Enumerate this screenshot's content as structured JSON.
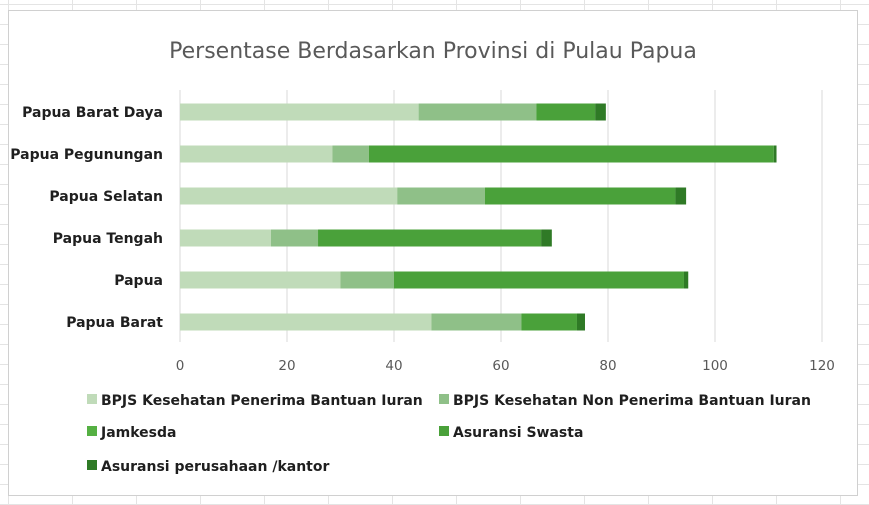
{
  "chart_data": {
    "type": "bar",
    "orientation": "horizontal",
    "stacked": true,
    "title": "Persentase Berdasarkan Provinsi di Pulau Papua",
    "categories": [
      "Papua Barat Daya",
      "Papua Pegunungan",
      "Papua Selatan",
      "Papua Tengah",
      "Papua",
      "Papua Barat"
    ],
    "series": [
      {
        "name": "BPJS Kesehatan Penerima Bantuan Iuran",
        "color": "#c0dbb9",
        "values": [
          44.6,
          28.5,
          40.6,
          17.0,
          30.0,
          47.0
        ]
      },
      {
        "name": "BPJS Kesehatan Non Penerima Bantuan Iuran",
        "color": "#8fc088",
        "values": [
          22.0,
          6.8,
          16.4,
          8.8,
          10.0,
          16.8
        ]
      },
      {
        "name": "Jamkesda",
        "color": "#55b043",
        "values": [
          0,
          0,
          0,
          0,
          0,
          0
        ]
      },
      {
        "name": "Asuransi Swasta",
        "color": "#4aa13a",
        "values": [
          11.0,
          75.7,
          35.6,
          41.7,
          54.2,
          10.4
        ]
      },
      {
        "name": "Asuransi perusahaan /kantor",
        "color": "#2f7a26",
        "values": [
          2.0,
          0.5,
          2.0,
          2.0,
          0.8,
          1.5
        ]
      }
    ],
    "xlim": [
      0,
      120
    ],
    "xticks": [
      0,
      20,
      40,
      60,
      80,
      100,
      120
    ],
    "grid": true,
    "legend_position": "bottom"
  }
}
